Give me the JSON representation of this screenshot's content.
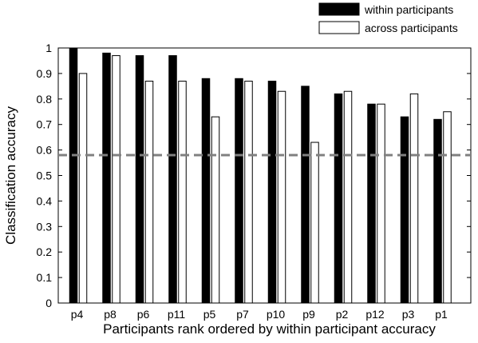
{
  "chart_data": {
    "type": "bar",
    "xlabel": "Participants rank ordered by within participant accuracy",
    "ylabel": "Classification accuracy",
    "ylim": [
      0,
      1
    ],
    "yticks": [
      "0",
      "0.1",
      "0.2",
      "0.3",
      "0.4",
      "0.5",
      "0.6",
      "0.7",
      "0.8",
      "0.9",
      "1"
    ],
    "yticks_values": [
      0,
      0.1,
      0.2,
      0.3,
      0.4,
      0.5,
      0.6,
      0.7,
      0.8,
      0.9,
      1
    ],
    "categories": [
      "p4",
      "p8",
      "p6",
      "p11",
      "p5",
      "p7",
      "p10",
      "p9",
      "p2",
      "p12",
      "p3",
      "p1"
    ],
    "series": [
      {
        "name": "within participants",
        "fill": "#000000",
        "values": [
          1.0,
          0.98,
          0.97,
          0.97,
          0.88,
          0.88,
          0.87,
          0.85,
          0.82,
          0.78,
          0.73,
          0.72
        ]
      },
      {
        "name": "across participants",
        "fill": "#ffffff",
        "values": [
          0.9,
          0.97,
          0.87,
          0.87,
          0.73,
          0.87,
          0.83,
          0.63,
          0.83,
          0.78,
          0.82,
          0.75
        ]
      }
    ],
    "reference_line": {
      "value": 0.58,
      "style": "dashed",
      "color": "#808080"
    },
    "legend_position": "top-right",
    "grid": false
  }
}
